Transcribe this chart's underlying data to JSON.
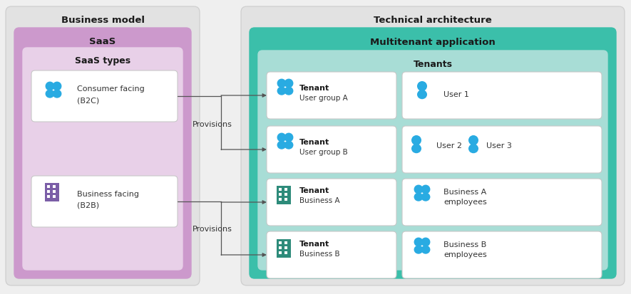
{
  "fig_width": 8.85,
  "fig_height": 4.14,
  "dpi": 100,
  "bg_color": "#efefef",
  "biz_model_bg": "#e2e2e2",
  "saas_box_color": "#cc99cc",
  "saas_types_box_color": "#e8d0e8",
  "tech_arch_bg": "#e2e2e2",
  "multitenant_box_color": "#3bbfaa",
  "tenants_box_color": "#a8ddd6",
  "white_box_color": "#ffffff",
  "white_box_edge": "#c8c8c8",
  "text_dark": "#1a1a1a",
  "text_medium": "#333333",
  "arrow_color": "#555555",
  "icon_cyan": "#29abe2",
  "icon_purple": "#7b5ea7",
  "icon_teal": "#2d8b7a",
  "title_biz": "Business model",
  "title_saas": "SaaS",
  "title_saas_types": "SaaS types",
  "title_tech": "Technical architecture",
  "title_multi": "Multitenant application",
  "title_tenants": "Tenants",
  "label_consumer": "Consumer facing\n(B2C)",
  "label_business": "Business facing\n(B2B)",
  "label_provisions_top": "Provisions",
  "label_provisions_bot": "Provisions"
}
